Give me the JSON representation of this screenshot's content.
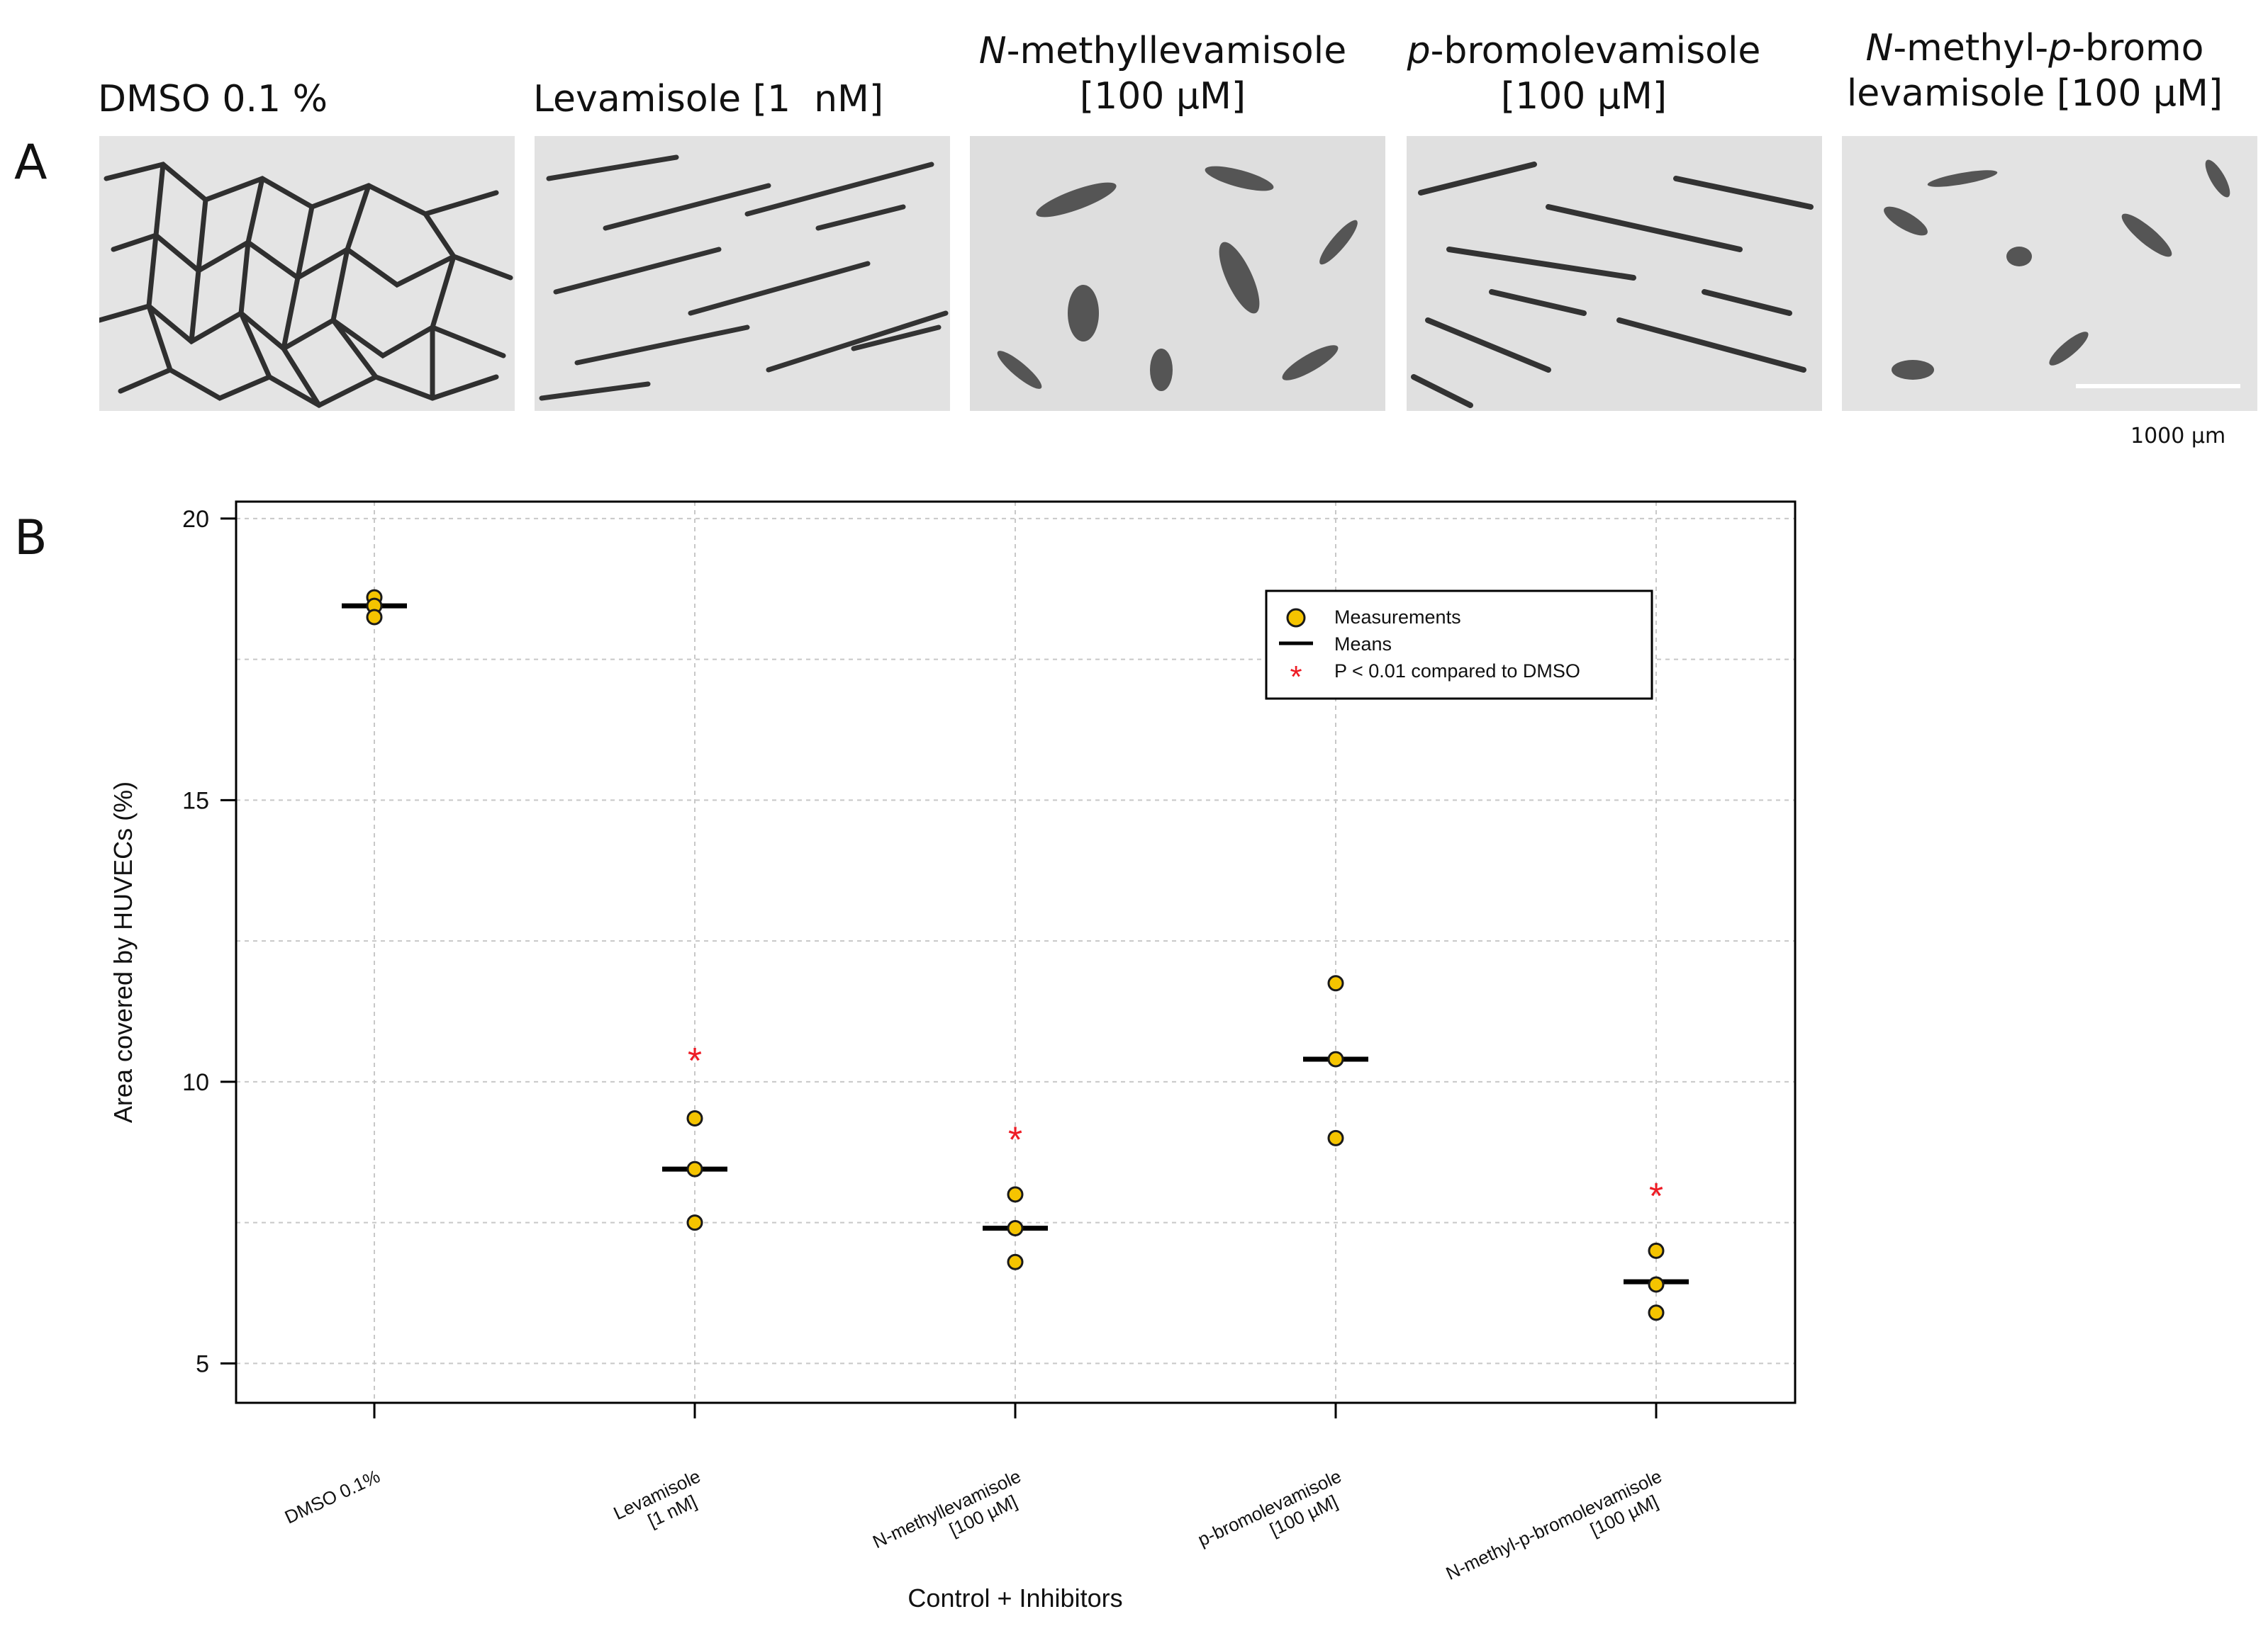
{
  "panel_a": {
    "letter": "A",
    "images": [
      {
        "line1": "DMSO 0.1 %",
        "line2": ""
      },
      {
        "line1": "Levamisole [1  nM]",
        "line2": ""
      },
      {
        "line1_it": "N",
        "line1": "-methyllevamisole",
        "line2": "[100 µM]"
      },
      {
        "line1_it": "p",
        "line1": "-bromolevamisole",
        "line2": "[100 µM]"
      },
      {
        "line1_it": "N",
        "line1": "-methyl-",
        "line1_it2": "p",
        "line1b": "-bromo",
        "line2": "levamisole [100 µM]"
      }
    ],
    "scale_bar_label": "1000 µm"
  },
  "panel_b": {
    "letter": "B"
  },
  "chart_data": {
    "type": "scatter",
    "xlabel": "Control + Inhibitors",
    "ylabel": "Area covered by HUVECs (%)",
    "ylim": [
      4.3,
      20.3
    ],
    "yticks": [
      5,
      10,
      15,
      20
    ],
    "grid": true,
    "categories": [
      [
        "DMSO 0.1%"
      ],
      [
        "Levamisole",
        "[1 nM]"
      ],
      [
        "N-methyllevamisole",
        "[100 µM]"
      ],
      [
        "p-bromolevamisole",
        "[100 µM]"
      ],
      [
        "N-methyl-p-bromolevamisole",
        "[100 µM]"
      ]
    ],
    "series": [
      {
        "name": "Measurements",
        "values": [
          [
            18.6,
            18.45,
            18.25
          ],
          [
            9.35,
            8.45,
            7.5
          ],
          [
            8.0,
            7.4,
            6.8
          ],
          [
            11.75,
            10.4,
            9.0
          ],
          [
            7.0,
            6.4,
            5.9
          ]
        ]
      },
      {
        "name": "Means",
        "values": [
          18.45,
          8.45,
          7.4,
          10.4,
          6.45
        ]
      }
    ],
    "significance": {
      "label": "P < 0.01 compared to DMSO",
      "symbol": "*",
      "positions": [
        null,
        10.45,
        9.05,
        null,
        8.05
      ]
    },
    "legend": {
      "position": "top-right",
      "entries": [
        "Measurements",
        "Means",
        "P < 0.01 compared to DMSO"
      ]
    },
    "colors": {
      "point_fill": "#f5c400",
      "point_stroke": "#1a1a1a",
      "mean_line": "#000000",
      "star": "#ee1c25",
      "grid": "#c8c8c8"
    }
  }
}
